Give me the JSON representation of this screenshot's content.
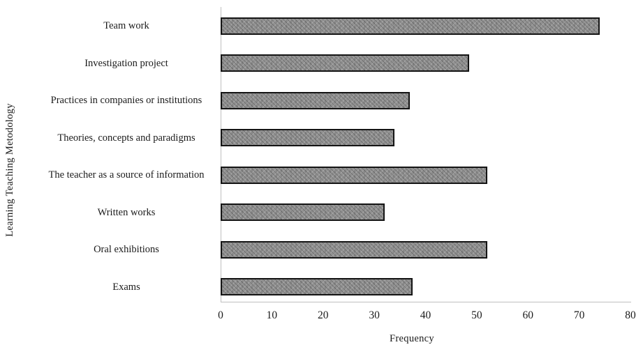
{
  "chart_data": {
    "type": "bar",
    "orientation": "horizontal",
    "title": "",
    "xlabel": "Frequency",
    "ylabel": "Learning Teaching Metodology",
    "categories": [
      "Team work",
      "Investigation project",
      "Practices in companies or institutions",
      "Theories, concepts and paradigms",
      "The teacher as a source of information",
      "Written works",
      "Oral exhibitions",
      "Exams"
    ],
    "values": [
      74,
      48.5,
      37,
      34,
      52,
      32,
      52,
      37.5
    ],
    "xlim": [
      0,
      80
    ],
    "xticks": [
      0,
      10,
      20,
      30,
      40,
      50,
      60,
      70,
      80
    ],
    "grid": "off",
    "legend": "none",
    "bar_fill_color": "#929292",
    "bar_border_color": "#141414",
    "axis_line_color": "#bfbfbf",
    "background_color": "#ffffff"
  }
}
